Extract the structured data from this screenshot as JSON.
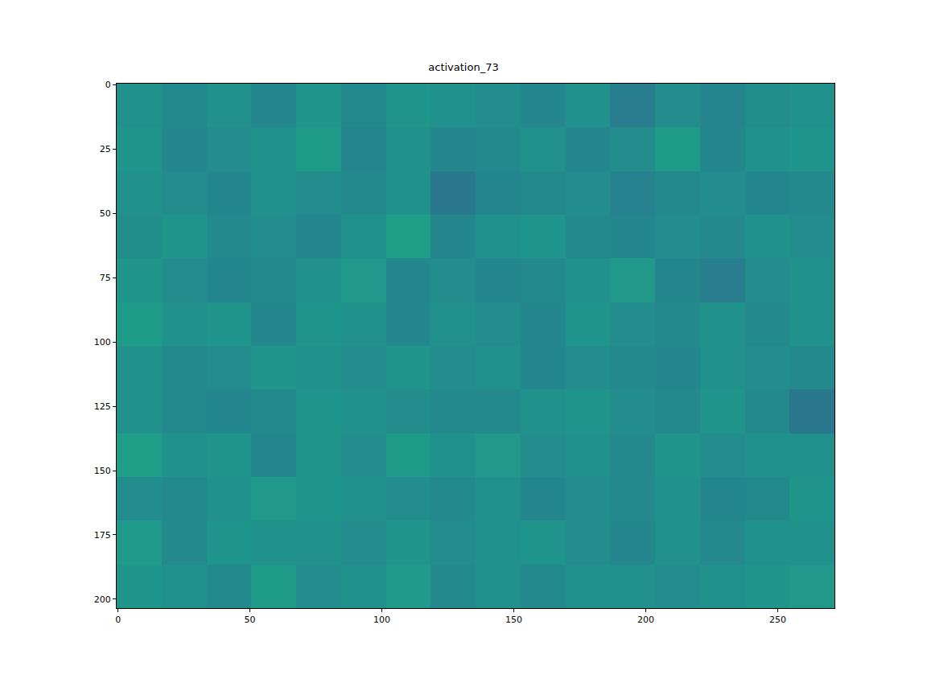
{
  "chart_data": {
    "type": "heatmap",
    "title": "activation_73",
    "x": [
      8,
      25,
      42,
      59,
      76,
      93,
      110,
      127,
      144,
      161,
      178,
      195,
      212,
      229,
      246,
      263
    ],
    "y": [
      8,
      25,
      42,
      59,
      76,
      93,
      110,
      127,
      144,
      161,
      178,
      195
    ],
    "cells": [
      [
        0.5,
        0.47,
        0.5,
        0.46,
        0.52,
        0.47,
        0.52,
        0.5,
        0.48,
        0.46,
        0.5,
        0.42,
        0.48,
        0.45,
        0.49,
        0.5
      ],
      [
        0.52,
        0.46,
        0.48,
        0.5,
        0.55,
        0.45,
        0.5,
        0.46,
        0.47,
        0.5,
        0.46,
        0.48,
        0.55,
        0.46,
        0.5,
        0.52
      ],
      [
        0.5,
        0.48,
        0.46,
        0.5,
        0.48,
        0.47,
        0.5,
        0.4,
        0.46,
        0.47,
        0.48,
        0.44,
        0.47,
        0.48,
        0.46,
        0.47
      ],
      [
        0.49,
        0.52,
        0.47,
        0.48,
        0.46,
        0.5,
        0.56,
        0.46,
        0.5,
        0.52,
        0.47,
        0.46,
        0.48,
        0.47,
        0.5,
        0.48
      ],
      [
        0.52,
        0.48,
        0.46,
        0.47,
        0.5,
        0.53,
        0.46,
        0.48,
        0.46,
        0.47,
        0.5,
        0.53,
        0.46,
        0.42,
        0.48,
        0.5
      ],
      [
        0.55,
        0.5,
        0.52,
        0.46,
        0.52,
        0.5,
        0.46,
        0.5,
        0.48,
        0.46,
        0.52,
        0.48,
        0.47,
        0.5,
        0.47,
        0.5
      ],
      [
        0.5,
        0.47,
        0.48,
        0.52,
        0.5,
        0.48,
        0.52,
        0.48,
        0.5,
        0.46,
        0.48,
        0.47,
        0.46,
        0.5,
        0.48,
        0.47
      ],
      [
        0.5,
        0.47,
        0.46,
        0.47,
        0.52,
        0.5,
        0.48,
        0.47,
        0.47,
        0.5,
        0.52,
        0.48,
        0.47,
        0.52,
        0.47,
        0.4
      ],
      [
        0.56,
        0.5,
        0.52,
        0.46,
        0.52,
        0.48,
        0.55,
        0.5,
        0.53,
        0.48,
        0.5,
        0.47,
        0.52,
        0.48,
        0.5,
        0.5
      ],
      [
        0.48,
        0.47,
        0.5,
        0.53,
        0.52,
        0.5,
        0.48,
        0.47,
        0.5,
        0.46,
        0.48,
        0.47,
        0.5,
        0.46,
        0.47,
        0.52
      ],
      [
        0.54,
        0.47,
        0.52,
        0.5,
        0.5,
        0.48,
        0.52,
        0.48,
        0.5,
        0.52,
        0.48,
        0.46,
        0.5,
        0.47,
        0.5,
        0.5
      ],
      [
        0.52,
        0.5,
        0.47,
        0.55,
        0.48,
        0.5,
        0.54,
        0.47,
        0.5,
        0.47,
        0.5,
        0.5,
        0.48,
        0.5,
        0.52,
        0.53
      ]
    ],
    "zlim": [
      0,
      1
    ],
    "xlim": [
      -0.5,
      271.5
    ],
    "ylim": [
      203.5,
      -0.5
    ],
    "xticks": [
      0,
      50,
      100,
      150,
      200,
      250
    ],
    "yticks": [
      0,
      25,
      50,
      75,
      100,
      125,
      150,
      175,
      200
    ],
    "grid": false
  }
}
